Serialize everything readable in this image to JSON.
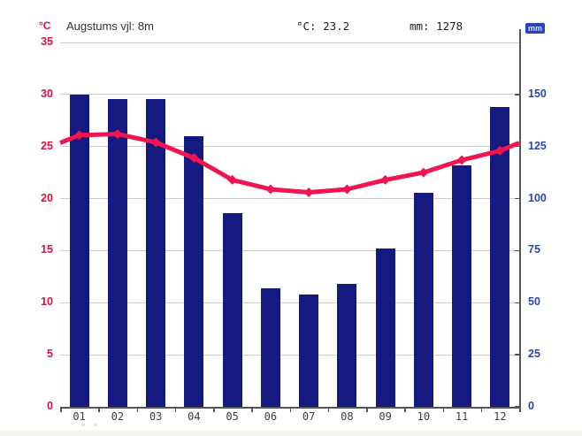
{
  "header": {
    "left_axis_unit": "°C",
    "station_label": "Augstums vjl: 8m",
    "mean_temperature": "°C: 23.2",
    "total_precipitation": "mm: 1278",
    "right_axis_unit": "mm"
  },
  "chart_data": {
    "type": "combo",
    "title": "Augstums vjl: 8m",
    "annotations": [
      "°C: 23.2",
      "mm: 1278"
    ],
    "categories": [
      "01",
      "02",
      "03",
      "04",
      "05",
      "06",
      "07",
      "08",
      "09",
      "10",
      "11",
      "12"
    ],
    "series": [
      {
        "name": "precipitation",
        "type": "bar",
        "unit": "mm",
        "axis": "right",
        "values": [
          150,
          148,
          148,
          130,
          93,
          57,
          54,
          59,
          76,
          103,
          116,
          144
        ]
      },
      {
        "name": "temperature",
        "type": "line",
        "unit": "°C",
        "axis": "left",
        "values": [
          26.1,
          26.2,
          25.4,
          23.9,
          21.8,
          20.9,
          20.6,
          20.9,
          21.8,
          22.5,
          23.7,
          24.6
        ]
      }
    ],
    "left_axis": {
      "unit": "°C",
      "ticks": [
        0,
        5,
        10,
        15,
        20,
        25,
        30,
        35
      ],
      "range": [
        0,
        35
      ]
    },
    "right_axis": {
      "unit": "mm",
      "ticks": [
        0,
        25,
        50,
        75,
        100,
        125,
        150
      ],
      "range": [
        0,
        175
      ]
    },
    "grid": true,
    "legend": "none"
  },
  "colors": {
    "bar": "#141a80",
    "line": "#ee1550",
    "left_axis_label": "#d2143f",
    "right_axis_label": "#2a48ab",
    "month_label": "#3c3c3c",
    "gridline": "#cccccc",
    "spine": "#555555",
    "header_text": "#333333",
    "mm_chip_bg": "#2743c2",
    "mm_chip_text": "#d9e1f8",
    "footer_strip": "#f6f5f2"
  }
}
